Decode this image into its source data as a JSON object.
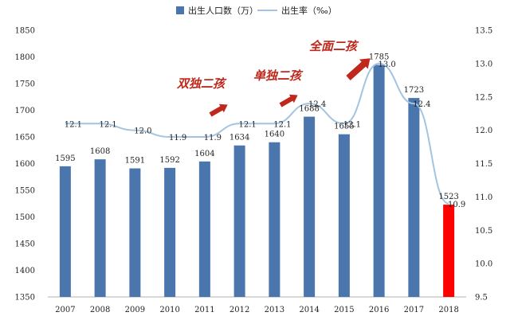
{
  "chart_data": {
    "type": "bar",
    "categories": [
      "2007",
      "2008",
      "2009",
      "2010",
      "2011",
      "2012",
      "2013",
      "2014",
      "2015",
      "2016",
      "2017",
      "2018"
    ],
    "series": [
      {
        "name": "出生人口数（万）",
        "type": "bar",
        "axis": "left",
        "values": [
          1595,
          1608,
          1591,
          1592,
          1604,
          1634,
          1640,
          1688,
          1655,
          1785,
          1723,
          1523
        ],
        "labels": [
          "1595",
          "1608",
          "1591",
          "1592",
          "1604",
          "1634",
          "1640",
          "1688",
          "1655",
          "1785",
          "1723",
          "1523"
        ],
        "color": "#4a76ad",
        "highlight_color": "#ff0000",
        "highlight_index": 11
      },
      {
        "name": "出生率（‰）",
        "type": "line",
        "axis": "right",
        "values": [
          12.1,
          12.1,
          12.0,
          11.9,
          11.9,
          12.1,
          12.1,
          12.4,
          12.1,
          13.0,
          12.4,
          10.9
        ],
        "labels": [
          "12.1",
          "12.1",
          "12.0",
          "11.9",
          "11.9",
          "12.1",
          "12.1",
          "12.4",
          "12.1",
          "13.0",
          "12.4",
          "10.9"
        ],
        "color": "#a3c4e0"
      }
    ],
    "ylim_left": [
      1350,
      1850
    ],
    "yticks_left": [
      "1350",
      "1400",
      "1450",
      "1500",
      "1550",
      "1600",
      "1650",
      "1700",
      "1750",
      "1800",
      "1850"
    ],
    "ylim_right": [
      9.5,
      13.5
    ],
    "yticks_right": [
      "9.5",
      "10.0",
      "10.5",
      "11.0",
      "11.5",
      "12.0",
      "12.5",
      "13.0",
      "13.5"
    ],
    "legend_position": "top-center",
    "grid": false,
    "annotations": [
      {
        "text": "双独二孩",
        "year": "2011"
      },
      {
        "text": "单独二孩",
        "year": "2013"
      },
      {
        "text": "全面二孩",
        "year": "2015"
      }
    ],
    "annotation_color": "#c0281d"
  }
}
